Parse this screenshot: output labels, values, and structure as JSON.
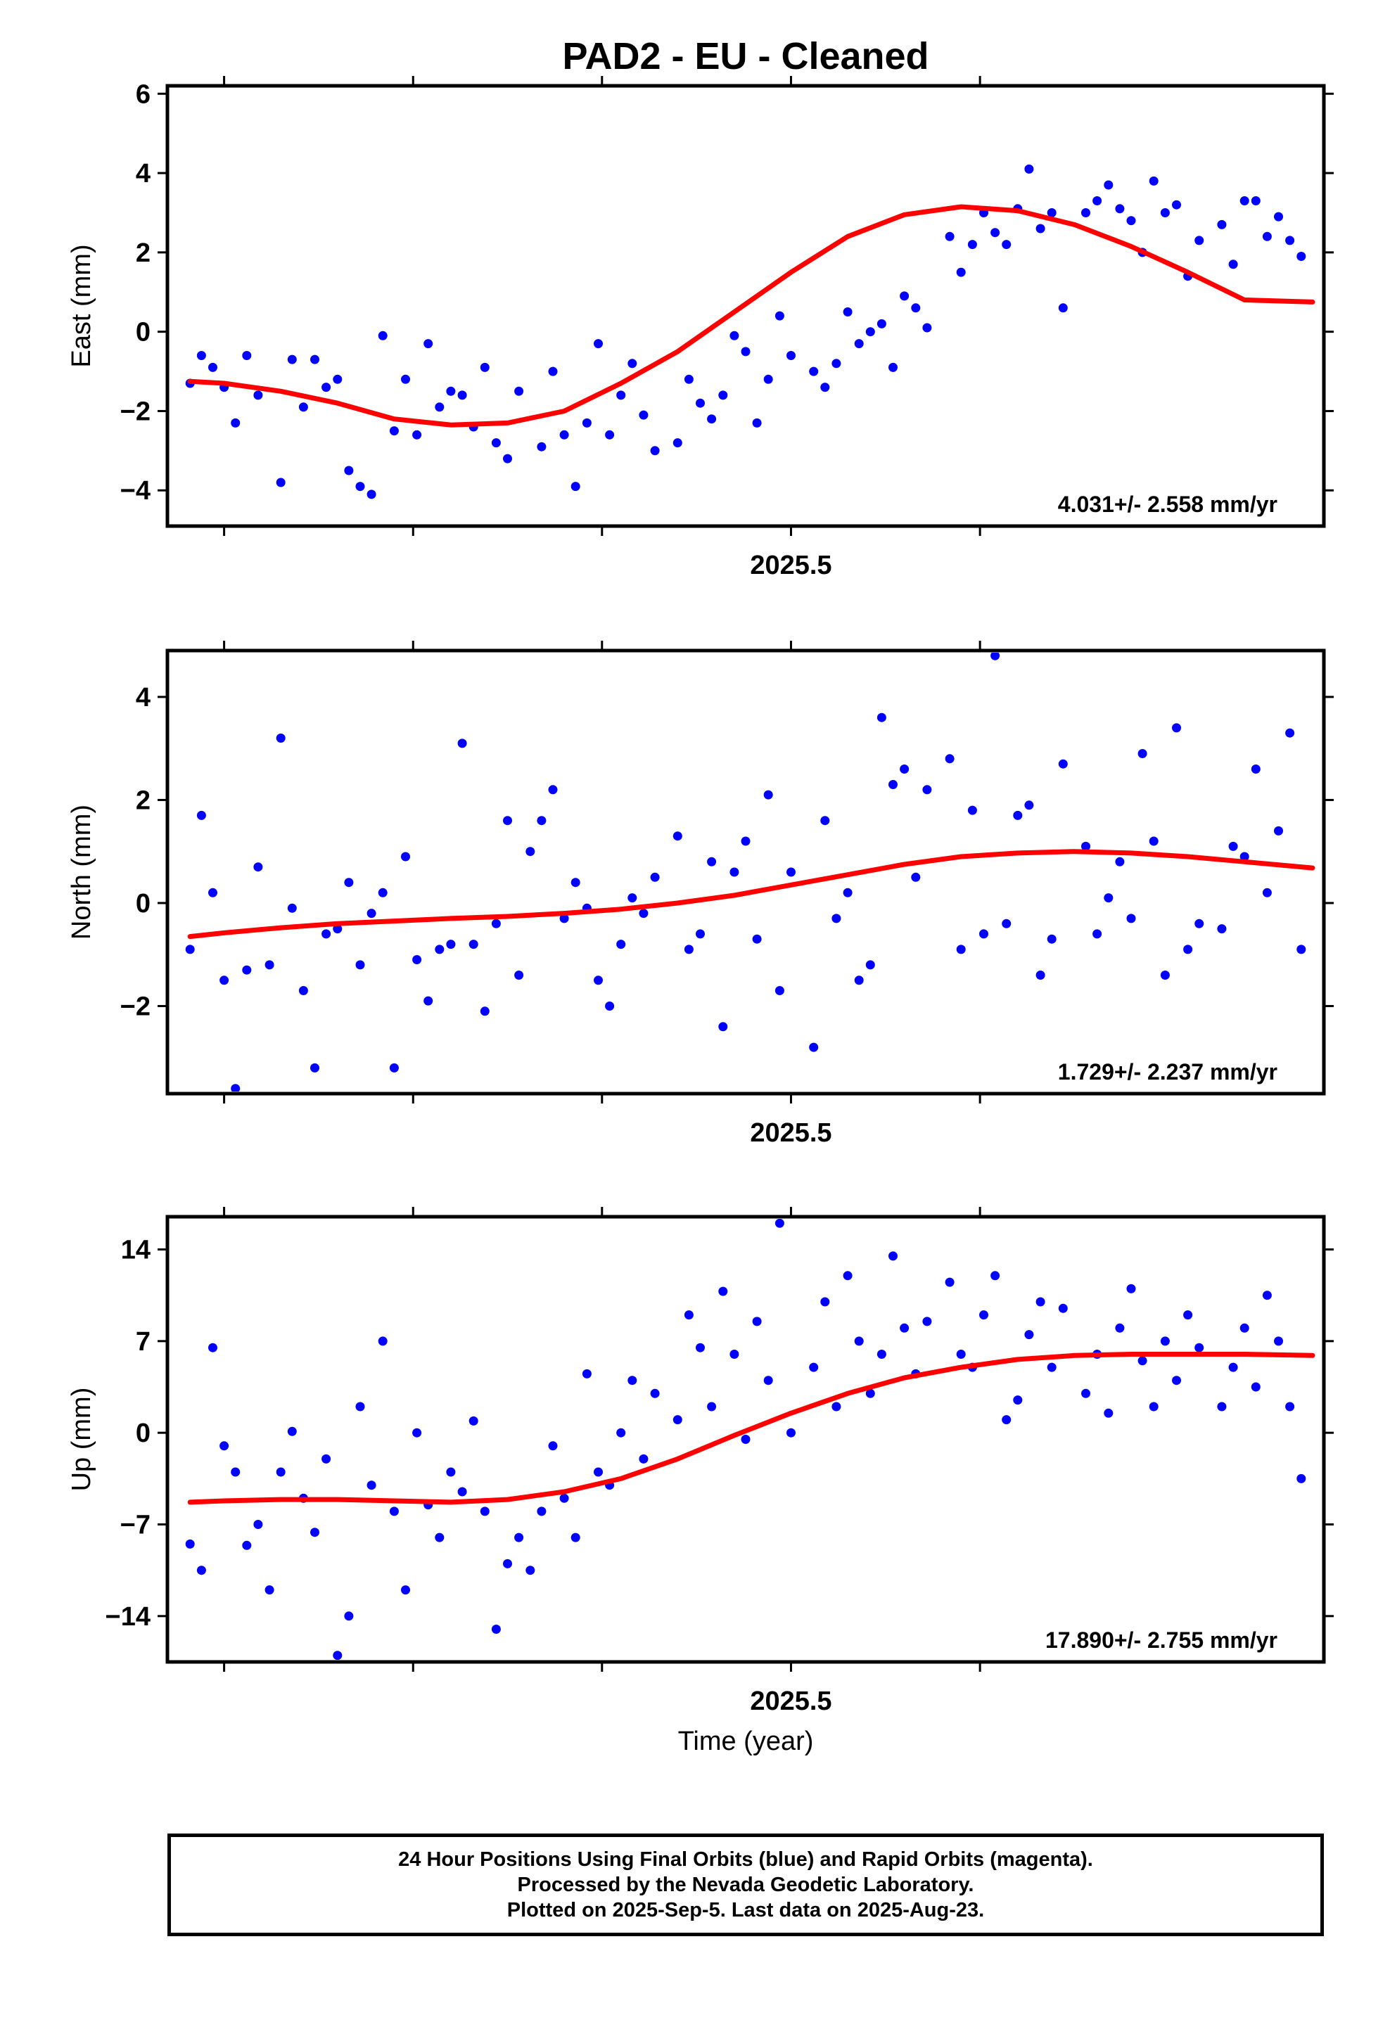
{
  "title": "PAD2  - EU - Cleaned",
  "xlabel": "Time (year)",
  "colors": {
    "points": "#0000ff",
    "fit": "#ff0000",
    "frame": "#000000"
  },
  "caption": [
    "24 Hour Positions Using Final Orbits (blue) and Rapid Orbits (magenta).",
    "Processed by the Nevada Geodetic Laboratory.",
    "Plotted on 2025-Sep-5. Last data on 2025-Aug-23."
  ],
  "chart_data": [
    {
      "type": "scatter",
      "ylabel": "East (mm)",
      "xlabel": "",
      "xlim": [
        2024.95,
        2025.97
      ],
      "ylim": [
        -4.9,
        6.2
      ],
      "ytick_values": [
        -4,
        -2,
        0,
        2,
        4,
        6
      ],
      "ytick_labels": [
        "−4",
        "−2",
        "0",
        "2",
        "4",
        "6"
      ],
      "xtick_values": [
        2025.0,
        2025.1667,
        2025.3333,
        2025.5,
        2025.6667
      ],
      "xtick_labels": [
        "",
        "",
        "",
        "2025.5",
        ""
      ],
      "rate_label": "4.031+/- 2.558 mm/yr",
      "series": [
        {
          "type": "scatter",
          "x": [
            2024.97,
            2024.98,
            2024.99,
            2025.0,
            2025.01,
            2025.02,
            2025.03,
            2025.05,
            2025.06,
            2025.07,
            2025.08,
            2025.09,
            2025.1,
            2025.11,
            2025.12,
            2025.13,
            2025.14,
            2025.15,
            2025.16,
            2025.17,
            2025.18,
            2025.19,
            2025.2,
            2025.21,
            2025.22,
            2025.23,
            2025.24,
            2025.25,
            2025.26,
            2025.28,
            2025.29,
            2025.3,
            2025.31,
            2025.32,
            2025.33,
            2025.34,
            2025.35,
            2025.36,
            2025.37,
            2025.38,
            2025.4,
            2025.41,
            2025.42,
            2025.43,
            2025.44,
            2025.45,
            2025.46,
            2025.47,
            2025.48,
            2025.49,
            2025.5,
            2025.52,
            2025.53,
            2025.54,
            2025.55,
            2025.56,
            2025.57,
            2025.58,
            2025.59,
            2025.6,
            2025.61,
            2025.62,
            2025.64,
            2025.65,
            2025.66,
            2025.67,
            2025.68,
            2025.69,
            2025.7,
            2025.71,
            2025.72,
            2025.73,
            2025.74,
            2025.76,
            2025.77,
            2025.78,
            2025.79,
            2025.8,
            2025.81,
            2025.82,
            2025.83,
            2025.84,
            2025.85,
            2025.86,
            2025.88,
            2025.89,
            2025.9,
            2025.91,
            2025.92,
            2025.93,
            2025.94,
            2025.95
          ],
          "y": [
            -1.3,
            -0.6,
            -0.9,
            -1.4,
            -2.3,
            -0.6,
            -1.6,
            -3.8,
            -0.7,
            -1.9,
            -0.7,
            -1.4,
            -1.2,
            -3.5,
            -3.9,
            -4.1,
            -0.1,
            -2.5,
            -1.2,
            -2.6,
            -0.3,
            -1.9,
            -1.5,
            -1.6,
            -2.4,
            -0.9,
            -2.8,
            -3.2,
            -1.5,
            -2.9,
            -1.0,
            -2.6,
            -3.9,
            -2.3,
            -0.3,
            -2.6,
            -1.6,
            -0.8,
            -2.1,
            -3.0,
            -2.8,
            -1.2,
            -1.8,
            -2.2,
            -1.6,
            -0.1,
            -0.5,
            -2.3,
            -1.2,
            0.4,
            -0.6,
            -1.0,
            -1.4,
            -0.8,
            0.5,
            -0.3,
            0.0,
            0.2,
            -0.9,
            0.9,
            0.6,
            0.1,
            2.4,
            1.5,
            2.2,
            3.0,
            2.5,
            2.2,
            3.1,
            4.1,
            2.6,
            3.0,
            0.6,
            3.0,
            3.3,
            3.7,
            3.1,
            2.8,
            2.0,
            3.8,
            3.0,
            3.2,
            1.4,
            2.3,
            2.7,
            1.7,
            3.3,
            3.3,
            2.4,
            2.9,
            2.3,
            1.9
          ],
          "name": ""
        },
        {
          "type": "line",
          "x": [
            2024.97,
            2025.0,
            2025.05,
            2025.1,
            2025.15,
            2025.2,
            2025.25,
            2025.3,
            2025.35,
            2025.4,
            2025.45,
            2025.5,
            2025.55,
            2025.6,
            2025.65,
            2025.7,
            2025.75,
            2025.8,
            2025.85,
            2025.9,
            2025.96
          ],
          "y": [
            -1.25,
            -1.3,
            -1.5,
            -1.8,
            -2.2,
            -2.35,
            -2.3,
            -2.0,
            -1.3,
            -0.5,
            0.5,
            1.5,
            2.4,
            2.95,
            3.15,
            3.05,
            2.7,
            2.15,
            1.5,
            0.8,
            0.75
          ],
          "name": ""
        }
      ]
    },
    {
      "type": "scatter",
      "ylabel": "North (mm)",
      "xlabel": "",
      "xlim": [
        2024.95,
        2025.97
      ],
      "ylim": [
        -3.7,
        4.9
      ],
      "ytick_values": [
        -2,
        0,
        2,
        4
      ],
      "ytick_labels": [
        "−2",
        "0",
        "2",
        "4"
      ],
      "xtick_values": [
        2025.0,
        2025.1667,
        2025.3333,
        2025.5,
        2025.6667
      ],
      "xtick_labels": [
        "",
        "",
        "",
        "2025.5",
        ""
      ],
      "rate_label": "1.729+/- 2.237 mm/yr",
      "series": [
        {
          "type": "scatter",
          "x": [
            2024.97,
            2024.98,
            2024.99,
            2025.0,
            2025.01,
            2025.02,
            2025.03,
            2025.04,
            2025.05,
            2025.06,
            2025.07,
            2025.08,
            2025.09,
            2025.1,
            2025.11,
            2025.12,
            2025.13,
            2025.14,
            2025.15,
            2025.16,
            2025.17,
            2025.18,
            2025.19,
            2025.2,
            2025.21,
            2025.22,
            2025.23,
            2025.24,
            2025.25,
            2025.26,
            2025.27,
            2025.28,
            2025.29,
            2025.3,
            2025.31,
            2025.32,
            2025.33,
            2025.34,
            2025.35,
            2025.36,
            2025.37,
            2025.38,
            2025.4,
            2025.41,
            2025.42,
            2025.43,
            2025.44,
            2025.45,
            2025.46,
            2025.47,
            2025.48,
            2025.49,
            2025.5,
            2025.52,
            2025.53,
            2025.54,
            2025.55,
            2025.56,
            2025.57,
            2025.58,
            2025.59,
            2025.6,
            2025.61,
            2025.62,
            2025.64,
            2025.65,
            2025.66,
            2025.67,
            2025.68,
            2025.69,
            2025.7,
            2025.71,
            2025.72,
            2025.73,
            2025.74,
            2025.76,
            2025.77,
            2025.78,
            2025.79,
            2025.8,
            2025.81,
            2025.82,
            2025.83,
            2025.84,
            2025.85,
            2025.86,
            2025.88,
            2025.89,
            2025.9,
            2025.91,
            2025.92,
            2025.93,
            2025.94,
            2025.95
          ],
          "y": [
            -0.9,
            1.7,
            0.2,
            -1.5,
            -3.6,
            -1.3,
            0.7,
            -1.2,
            3.2,
            -0.1,
            -1.7,
            -3.2,
            -0.6,
            -0.5,
            0.4,
            -1.2,
            -0.2,
            0.2,
            -3.2,
            0.9,
            -1.1,
            -1.9,
            -0.9,
            -0.8,
            3.1,
            -0.8,
            -2.1,
            -0.4,
            1.6,
            -1.4,
            1.0,
            1.6,
            2.2,
            -0.3,
            0.4,
            -0.1,
            -1.5,
            -2.0,
            -0.8,
            0.1,
            -0.2,
            0.5,
            1.3,
            -0.9,
            -0.6,
            0.8,
            -2.4,
            0.6,
            1.2,
            -0.7,
            2.1,
            -1.7,
            0.6,
            -2.8,
            1.6,
            -0.3,
            0.2,
            -1.5,
            -1.2,
            3.6,
            2.3,
            2.6,
            0.5,
            2.2,
            2.8,
            -0.9,
            1.8,
            -0.6,
            4.8,
            -0.4,
            1.7,
            1.9,
            -1.4,
            -0.7,
            2.7,
            1.1,
            -0.6,
            0.1,
            0.8,
            -0.3,
            2.9,
            1.2,
            -1.4,
            3.4,
            -0.9,
            -0.4,
            -0.5,
            1.1,
            0.9,
            2.6,
            0.2,
            1.4,
            3.3,
            -0.9
          ],
          "name": ""
        },
        {
          "type": "line",
          "x": [
            2024.97,
            2025.0,
            2025.05,
            2025.1,
            2025.15,
            2025.2,
            2025.25,
            2025.3,
            2025.35,
            2025.4,
            2025.45,
            2025.5,
            2025.55,
            2025.6,
            2025.65,
            2025.7,
            2025.75,
            2025.8,
            2025.85,
            2025.9,
            2025.96
          ],
          "y": [
            -0.65,
            -0.58,
            -0.48,
            -0.4,
            -0.35,
            -0.3,
            -0.26,
            -0.2,
            -0.12,
            0.0,
            0.15,
            0.35,
            0.55,
            0.75,
            0.9,
            0.97,
            1.0,
            0.97,
            0.9,
            0.8,
            0.68
          ],
          "name": ""
        }
      ]
    },
    {
      "type": "scatter",
      "ylabel": "Up (mm)",
      "xlabel": "Time (year)",
      "xlim": [
        2024.95,
        2025.97
      ],
      "ylim": [
        -17.5,
        16.5
      ],
      "ytick_values": [
        -14,
        -7,
        0,
        7,
        14
      ],
      "ytick_labels": [
        "−14",
        "−7",
        "0",
        "7",
        "14"
      ],
      "xtick_values": [
        2025.0,
        2025.1667,
        2025.3333,
        2025.5,
        2025.6667
      ],
      "xtick_labels": [
        "",
        "",
        "",
        "2025.5",
        ""
      ],
      "rate_label": "17.890+/- 2.755 mm/yr",
      "series": [
        {
          "type": "scatter",
          "x": [
            2024.97,
            2024.98,
            2024.99,
            2025.0,
            2025.01,
            2025.02,
            2025.03,
            2025.04,
            2025.05,
            2025.06,
            2025.07,
            2025.08,
            2025.09,
            2025.1,
            2025.11,
            2025.12,
            2025.13,
            2025.14,
            2025.15,
            2025.16,
            2025.17,
            2025.18,
            2025.19,
            2025.2,
            2025.21,
            2025.22,
            2025.23,
            2025.24,
            2025.25,
            2025.26,
            2025.27,
            2025.28,
            2025.29,
            2025.3,
            2025.31,
            2025.32,
            2025.33,
            2025.34,
            2025.35,
            2025.36,
            2025.37,
            2025.38,
            2025.4,
            2025.41,
            2025.42,
            2025.43,
            2025.44,
            2025.45,
            2025.46,
            2025.47,
            2025.48,
            2025.49,
            2025.5,
            2025.52,
            2025.53,
            2025.54,
            2025.55,
            2025.56,
            2025.57,
            2025.58,
            2025.59,
            2025.6,
            2025.61,
            2025.62,
            2025.64,
            2025.65,
            2025.66,
            2025.67,
            2025.68,
            2025.69,
            2025.7,
            2025.71,
            2025.72,
            2025.73,
            2025.74,
            2025.76,
            2025.77,
            2025.78,
            2025.79,
            2025.8,
            2025.81,
            2025.82,
            2025.83,
            2025.84,
            2025.85,
            2025.86,
            2025.88,
            2025.89,
            2025.9,
            2025.91,
            2025.92,
            2025.93,
            2025.94,
            2025.95
          ],
          "y": [
            -8.5,
            -10.5,
            6.5,
            -1.0,
            -3.0,
            -8.6,
            -7.0,
            -12.0,
            -3.0,
            0.1,
            -5.0,
            -7.6,
            -2.0,
            -17.0,
            -14.0,
            2.0,
            -4.0,
            7.0,
            -6.0,
            -12.0,
            0.0,
            -5.5,
            -8.0,
            -3.0,
            -4.5,
            0.9,
            -6.0,
            -15.0,
            -10.0,
            -8.0,
            -10.5,
            -6.0,
            -1.0,
            -5.0,
            -8.0,
            4.5,
            -3.0,
            -4.0,
            0.0,
            4.0,
            -2.0,
            3.0,
            1.0,
            9.0,
            6.5,
            2.0,
            10.8,
            6.0,
            -0.5,
            8.5,
            4.0,
            16.0,
            0.0,
            5.0,
            10.0,
            2.0,
            12.0,
            7.0,
            3.0,
            6.0,
            13.5,
            8.0,
            4.5,
            8.5,
            11.5,
            6.0,
            5.0,
            9.0,
            12.0,
            1.0,
            2.5,
            7.5,
            10.0,
            5.0,
            9.5,
            3.0,
            6.0,
            1.5,
            8.0,
            11.0,
            5.5,
            2.0,
            7.0,
            4.0,
            9.0,
            6.5,
            2.0,
            5.0,
            8.0,
            3.5,
            10.5,
            7.0,
            2.0,
            -3.5
          ],
          "name": ""
        },
        {
          "type": "line",
          "x": [
            2024.97,
            2025.0,
            2025.05,
            2025.1,
            2025.15,
            2025.2,
            2025.25,
            2025.3,
            2025.35,
            2025.4,
            2025.45,
            2025.5,
            2025.55,
            2025.6,
            2025.65,
            2025.7,
            2025.75,
            2025.8,
            2025.85,
            2025.9,
            2025.96
          ],
          "y": [
            -5.3,
            -5.2,
            -5.1,
            -5.1,
            -5.2,
            -5.3,
            -5.1,
            -4.5,
            -3.5,
            -2.0,
            -0.2,
            1.5,
            3.0,
            4.2,
            5.0,
            5.6,
            5.9,
            6.0,
            6.0,
            6.0,
            5.9
          ],
          "name": ""
        }
      ]
    }
  ]
}
